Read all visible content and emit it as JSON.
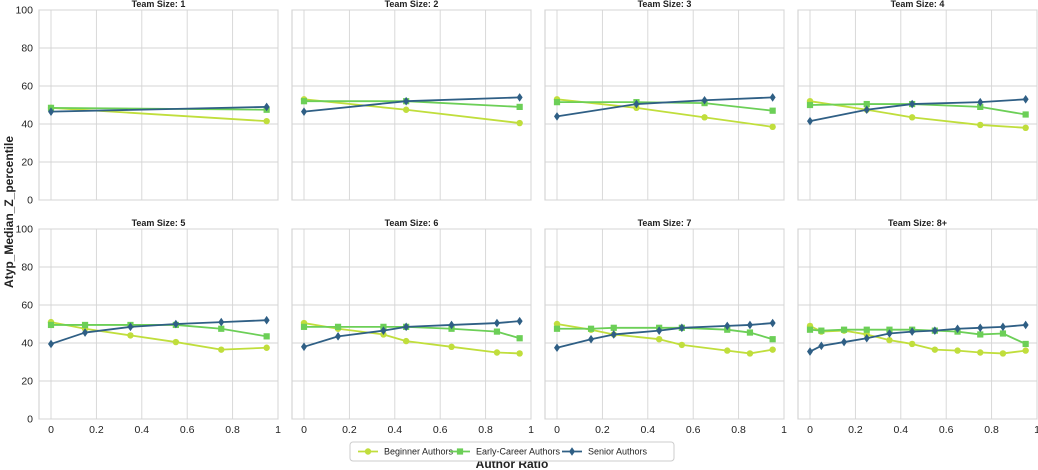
{
  "colors": {
    "beginner": "#c0de3c",
    "early": "#6ccf57",
    "senior": "#2f5f85",
    "grid": "#d5d5d5",
    "frame": "#cccccc"
  },
  "chart_data": {
    "type": "line",
    "ylabel": "Atyp_Median_Z_percentile",
    "xlabel": "Author Ratio",
    "ylim": [
      0,
      100
    ],
    "xlim": [
      0,
      1
    ],
    "y_ticks": [
      "0",
      "20",
      "40",
      "60",
      "80",
      "100"
    ],
    "x_ticks": [
      "0",
      "0.2",
      "0.4",
      "0.6",
      "0.8",
      "1"
    ],
    "grid": true,
    "legend_position": "bottom-center",
    "legend": [
      {
        "name": "Beginner Authors",
        "marker": "circle",
        "color": "#c0de3c"
      },
      {
        "name": "Early-Career Authors",
        "marker": "square",
        "color": "#6ccf57"
      },
      {
        "name": "Senior Authors",
        "marker": "diamond",
        "color": "#2f5f85"
      }
    ],
    "panels": [
      {
        "title": "Team Size: 1",
        "series": [
          {
            "name": "Beginner Authors",
            "x": [
              0,
              0.95
            ],
            "y": [
              48.5,
              41.5
            ]
          },
          {
            "name": "Early-Career Authors",
            "x": [
              0,
              0.95
            ],
            "y": [
              48.5,
              47.5
            ]
          },
          {
            "name": "Senior Authors",
            "x": [
              0,
              0.95
            ],
            "y": [
              46.5,
              49
            ]
          }
        ]
      },
      {
        "title": "Team Size: 2",
        "series": [
          {
            "name": "Beginner Authors",
            "x": [
              0,
              0.45,
              0.95
            ],
            "y": [
              53,
              47.5,
              40.5
            ]
          },
          {
            "name": "Early-Career Authors",
            "x": [
              0,
              0.45,
              0.95
            ],
            "y": [
              52,
              52,
              49
            ]
          },
          {
            "name": "Senior Authors",
            "x": [
              0,
              0.45,
              0.95
            ],
            "y": [
              46.5,
              52,
              54
            ]
          }
        ]
      },
      {
        "title": "Team Size: 3",
        "series": [
          {
            "name": "Beginner Authors",
            "x": [
              0,
              0.35,
              0.65,
              0.95
            ],
            "y": [
              53,
              48.5,
              43.5,
              38.5
            ]
          },
          {
            "name": "Early-Career Authors",
            "x": [
              0,
              0.35,
              0.65,
              0.95
            ],
            "y": [
              51.5,
              51.5,
              51,
              47
            ]
          },
          {
            "name": "Senior Authors",
            "x": [
              0,
              0.35,
              0.65,
              0.95
            ],
            "y": [
              44,
              50.5,
              52.5,
              54
            ]
          }
        ]
      },
      {
        "title": "Team Size: 4",
        "series": [
          {
            "name": "Beginner Authors",
            "x": [
              0,
              0.25,
              0.45,
              0.75,
              0.95
            ],
            "y": [
              52,
              47.5,
              43.5,
              39.5,
              38
            ]
          },
          {
            "name": "Early-Career Authors",
            "x": [
              0,
              0.25,
              0.45,
              0.75,
              0.95
            ],
            "y": [
              50,
              50.5,
              50.5,
              49,
              45
            ]
          },
          {
            "name": "Senior Authors",
            "x": [
              0,
              0.25,
              0.45,
              0.75,
              0.95
            ],
            "y": [
              41.5,
              47.5,
              50.5,
              51.5,
              53
            ]
          }
        ]
      },
      {
        "title": "Team Size: 5",
        "series": [
          {
            "name": "Beginner Authors",
            "x": [
              0,
              0.15,
              0.35,
              0.55,
              0.75,
              0.95
            ],
            "y": [
              51,
              47.5,
              44,
              40.5,
              36.5,
              37.5
            ]
          },
          {
            "name": "Early-Career Authors",
            "x": [
              0,
              0.15,
              0.35,
              0.55,
              0.75,
              0.95
            ],
            "y": [
              49.5,
              49.5,
              49.5,
              49.5,
              47.5,
              43.5
            ]
          },
          {
            "name": "Senior Authors",
            "x": [
              0,
              0.15,
              0.35,
              0.55,
              0.75,
              0.95
            ],
            "y": [
              39.5,
              45.5,
              48.5,
              50,
              51,
              52
            ]
          }
        ]
      },
      {
        "title": "Team Size: 6",
        "series": [
          {
            "name": "Beginner Authors",
            "x": [
              0,
              0.15,
              0.35,
              0.45,
              0.65,
              0.85,
              0.95
            ],
            "y": [
              50.5,
              47.5,
              44.5,
              41,
              38,
              35,
              34.5
            ]
          },
          {
            "name": "Early-Career Authors",
            "x": [
              0,
              0.15,
              0.35,
              0.45,
              0.65,
              0.85,
              0.95
            ],
            "y": [
              48.5,
              48.5,
              48.5,
              48.5,
              47.5,
              46,
              42.5
            ]
          },
          {
            "name": "Senior Authors",
            "x": [
              0,
              0.15,
              0.35,
              0.45,
              0.65,
              0.85,
              0.95
            ],
            "y": [
              38,
              43.5,
              46.5,
              48.5,
              49.5,
              50.5,
              51.5
            ]
          }
        ]
      },
      {
        "title": "Team Size: 7",
        "series": [
          {
            "name": "Beginner Authors",
            "x": [
              0,
              0.15,
              0.25,
              0.45,
              0.55,
              0.75,
              0.85,
              0.95
            ],
            "y": [
              50,
              47,
              44.5,
              42,
              39,
              36,
              34.5,
              36.5
            ]
          },
          {
            "name": "Early-Career Authors",
            "x": [
              0,
              0.15,
              0.25,
              0.45,
              0.55,
              0.75,
              0.85,
              0.95
            ],
            "y": [
              47.5,
              47.5,
              48,
              48,
              48,
              47,
              45.5,
              42
            ]
          },
          {
            "name": "Senior Authors",
            "x": [
              0,
              0.15,
              0.25,
              0.45,
              0.55,
              0.75,
              0.85,
              0.95
            ],
            "y": [
              37.5,
              42,
              44.5,
              46.5,
              48,
              49,
              49.5,
              50.5
            ]
          }
        ]
      },
      {
        "title": "Team Size: 8+",
        "series": [
          {
            "name": "Beginner Authors",
            "x": [
              0,
              0.05,
              0.15,
              0.25,
              0.35,
              0.45,
              0.55,
              0.65,
              0.75,
              0.85,
              0.95
            ],
            "y": [
              49,
              46,
              46.5,
              44.5,
              41.5,
              39.5,
              36.5,
              36,
              35,
              34.5,
              36
            ]
          },
          {
            "name": "Early-Career Authors",
            "x": [
              0,
              0.05,
              0.15,
              0.25,
              0.35,
              0.45,
              0.55,
              0.65,
              0.75,
              0.85,
              0.95
            ],
            "y": [
              47,
              46.5,
              47,
              47,
              47,
              47,
              46.5,
              46,
              44.5,
              45,
              39.5
            ]
          },
          {
            "name": "Senior Authors",
            "x": [
              0,
              0.05,
              0.15,
              0.25,
              0.35,
              0.45,
              0.55,
              0.65,
              0.75,
              0.85,
              0.95
            ],
            "y": [
              35.5,
              38.5,
              40.5,
              42.5,
              45,
              46,
              46.5,
              47.5,
              48,
              48.5,
              49.5
            ]
          }
        ]
      }
    ]
  }
}
